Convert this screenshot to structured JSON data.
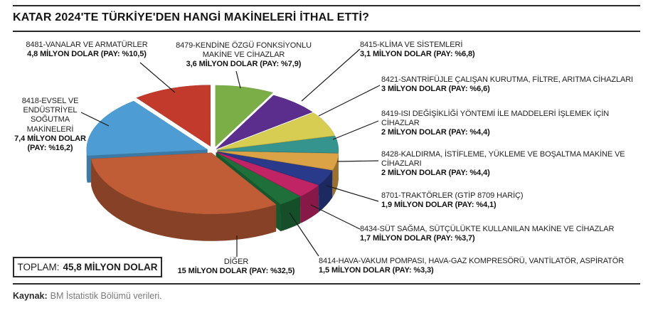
{
  "header": {
    "title": "KATAR 2024'TE TÜRKİYE'DEN HANGİ MAKİNELERİ İTHAL ETTİ?"
  },
  "total": {
    "label": "TOPLAM:",
    "value": "45,8 MİLYON DOLAR"
  },
  "footer": {
    "source_label": "Kaynak:",
    "source_text": "BM İstatistik Bölümü verileri."
  },
  "chart_data": {
    "type": "pie",
    "style": "3d-exploded",
    "unit": "milyon dolar",
    "total_label": "TOPLAM: 45,8 MİLYON DOLAR",
    "slices": [
      {
        "code": "8479",
        "name": "8479-KENDİNE ÖZGÜ FONKSİYONLU MAKİNE VE CİHAZLAR",
        "value": 3.6,
        "share": 7.9,
        "value_label": "3,6 MİLYON DOLAR (PAY: %7,9)",
        "color": "#7cae47"
      },
      {
        "code": "8415",
        "name": "8415-KLİMA VE SİSTEMLERİ",
        "value": 3.1,
        "share": 6.8,
        "value_label": "3,1 MİLYON DOLAR (PAY: %6,8)",
        "color": "#5b2d8c"
      },
      {
        "code": "8421",
        "name": "8421-SANTRİFÜJLE ÇALIŞAN KURUTMA, FİLTRE, ARITMA CİHAZLARI",
        "value": 3.0,
        "share": 6.6,
        "value_label": "3 MİLYON DOLAR (PAY: %6,6)",
        "color": "#d6cd52"
      },
      {
        "code": "8419",
        "name": "8419-ISI DEĞİŞİKLİĞİ YÖNTEMİ İLE MADDELERİ İŞLEMEK İÇİN CİHAZLAR",
        "value": 2.0,
        "share": 4.4,
        "value_label": "2 MİLYON DOLAR (PAY: %4,4)",
        "color": "#35948e"
      },
      {
        "code": "8428",
        "name": "8428-KALDIRMA, İSTİFLEME, YÜKLEME VE BOŞALTMA MAKİNE VE CİHAZLARI",
        "value": 2.0,
        "share": 4.4,
        "value_label": "2 MİLYON DOLAR (PAY: %4,4)",
        "color": "#dca246"
      },
      {
        "code": "8701",
        "name": "8701-TRAKTÖRLER (GTİP 8709 HARİÇ)",
        "value": 1.9,
        "share": 4.1,
        "value_label": "1,9 MİLYON DOLAR (PAY: %4,1)",
        "color": "#2a3a8a"
      },
      {
        "code": "8434",
        "name": "8434-SÜT SAĞMA, SÜTÇÜLÜKTE KULLANILAN MAKİNE VE CİHAZLAR",
        "value": 1.7,
        "share": 3.7,
        "value_label": "1,7 MİLYON DOLAR (PAY: %3,7)",
        "color": "#c02465"
      },
      {
        "code": "8414",
        "name": "8414-HAVA-VAKUM POMPASI, HAVA-GAZ KOMPRESÖRÜ, VANTİLATÖR, ASPİRATÖR",
        "value": 1.5,
        "share": 3.3,
        "value_label": "1,5 MİLYON DOLAR (PAY: %3,3)",
        "color": "#1e6f3a"
      },
      {
        "code": "DİĞER",
        "name": "DİĞER",
        "value": 15.0,
        "share": 32.5,
        "value_label": "15 MİLYON DOLAR (PAY: %32,5)",
        "color": "#c05d36"
      },
      {
        "code": "8418",
        "name": "8418-EVSEL VE ENDÜSTRİYEL SOĞUTMA MAKİNELERİ",
        "value": 7.4,
        "share": 16.2,
        "value_label": "7,4 MİLYON DOLAR (PAY: %16,2)",
        "color": "#4d9dd4"
      },
      {
        "code": "8481",
        "name": "8481-VANALAR VE ARMATÜRLER",
        "value": 4.8,
        "share": 10.5,
        "value_label": "4,8 MİLYON DOLAR (PAY: %10,5)",
        "color": "#c13a2c"
      }
    ]
  }
}
